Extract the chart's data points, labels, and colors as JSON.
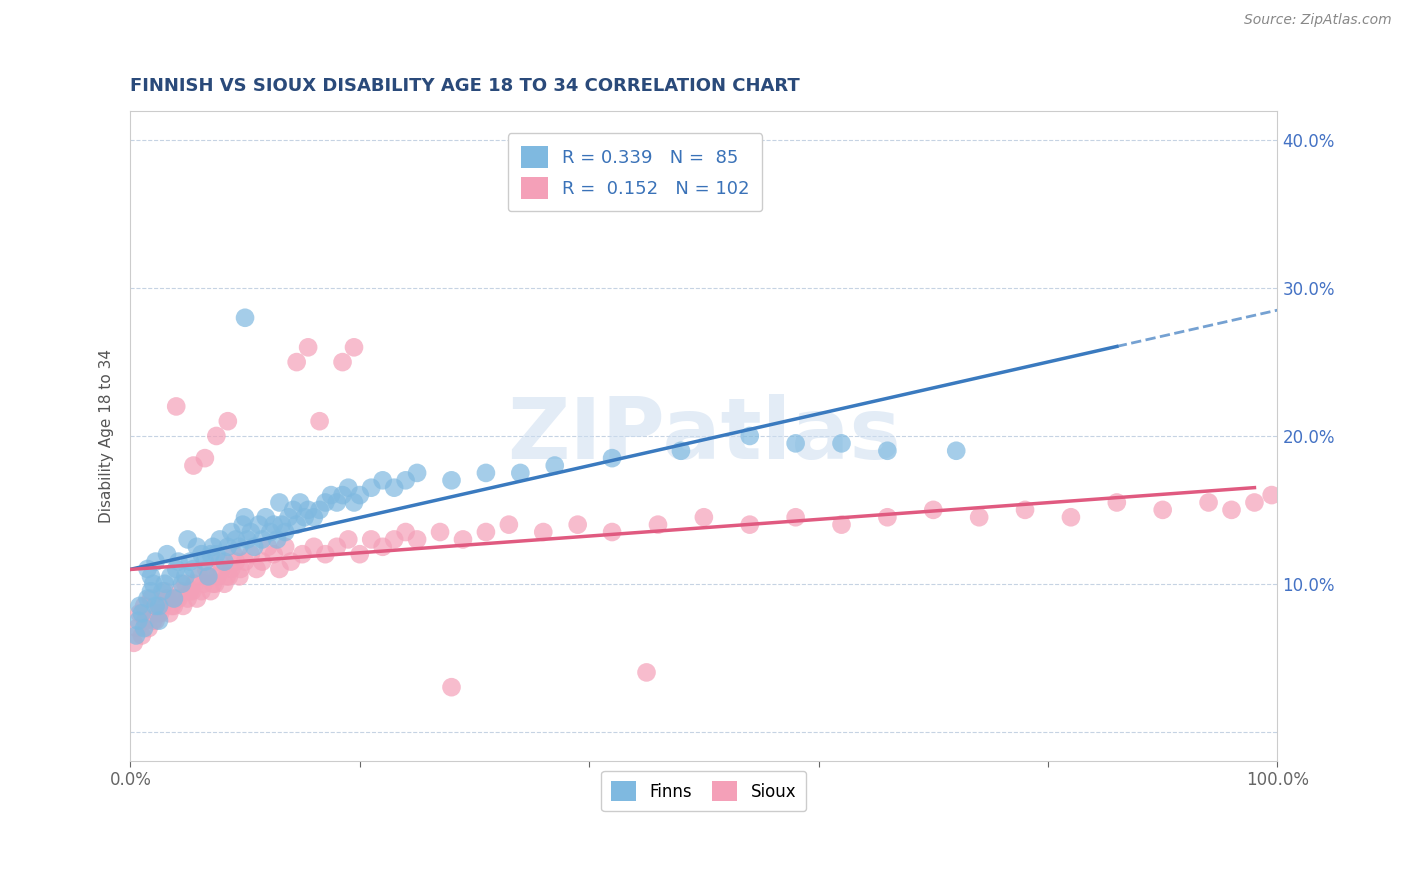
{
  "title": "FINNISH VS SIOUX DISABILITY AGE 18 TO 34 CORRELATION CHART",
  "source": "Source: ZipAtlas.com",
  "ylabel": "Disability Age 18 to 34",
  "xlim": [
    0.0,
    1.0
  ],
  "ylim": [
    -0.02,
    0.42
  ],
  "xticks": [
    0.0,
    0.2,
    0.4,
    0.6,
    0.8,
    1.0
  ],
  "xticklabels": [
    "0.0%",
    "",
    "",
    "",
    "",
    "100.0%"
  ],
  "yticks": [
    0.0,
    0.1,
    0.2,
    0.3,
    0.4
  ],
  "yticklabels": [
    "",
    "10.0%",
    "20.0%",
    "30.0%",
    "40.0%"
  ],
  "finns_R": 0.339,
  "finns_N": 85,
  "sioux_R": 0.152,
  "sioux_N": 102,
  "finns_color": "#7fb9e0",
  "sioux_color": "#f4a0b8",
  "finns_line_color": "#3a7abf",
  "sioux_line_color": "#e05a80",
  "finns_line_dash": "solid",
  "sioux_line_dash": "solid",
  "background_color": "#ffffff",
  "grid_color": "#c0cfe0",
  "title_color": "#2a4a7a",
  "watermark": "ZIPatlas",
  "legend_label_finns": "Finns",
  "legend_label_sioux": "Sioux",
  "finns_x": [
    0.005,
    0.007,
    0.01,
    0.012,
    0.015,
    0.008,
    0.018,
    0.02,
    0.022,
    0.025,
    0.015,
    0.018,
    0.022,
    0.028,
    0.03,
    0.035,
    0.038,
    0.04,
    0.032,
    0.025,
    0.042,
    0.045,
    0.048,
    0.052,
    0.055,
    0.058,
    0.062,
    0.065,
    0.068,
    0.05,
    0.072,
    0.075,
    0.078,
    0.082,
    0.085,
    0.088,
    0.092,
    0.095,
    0.098,
    0.07,
    0.102,
    0.105,
    0.108,
    0.112,
    0.115,
    0.118,
    0.122,
    0.125,
    0.128,
    0.1,
    0.132,
    0.135,
    0.138,
    0.142,
    0.145,
    0.148,
    0.152,
    0.155,
    0.13,
    0.16,
    0.165,
    0.17,
    0.175,
    0.18,
    0.185,
    0.19,
    0.195,
    0.2,
    0.21,
    0.22,
    0.23,
    0.24,
    0.25,
    0.28,
    0.31,
    0.34,
    0.37,
    0.42,
    0.48,
    0.54,
    0.58,
    0.62,
    0.66,
    0.72,
    0.1
  ],
  "finns_y": [
    0.065,
    0.075,
    0.08,
    0.07,
    0.09,
    0.085,
    0.095,
    0.1,
    0.085,
    0.075,
    0.11,
    0.105,
    0.115,
    0.095,
    0.1,
    0.105,
    0.09,
    0.11,
    0.12,
    0.085,
    0.115,
    0.1,
    0.105,
    0.115,
    0.11,
    0.125,
    0.12,
    0.115,
    0.105,
    0.13,
    0.125,
    0.12,
    0.13,
    0.115,
    0.125,
    0.135,
    0.13,
    0.125,
    0.14,
    0.12,
    0.13,
    0.135,
    0.125,
    0.14,
    0.13,
    0.145,
    0.135,
    0.14,
    0.13,
    0.145,
    0.14,
    0.135,
    0.145,
    0.15,
    0.14,
    0.155,
    0.145,
    0.15,
    0.155,
    0.145,
    0.15,
    0.155,
    0.16,
    0.155,
    0.16,
    0.165,
    0.155,
    0.16,
    0.165,
    0.17,
    0.165,
    0.17,
    0.175,
    0.17,
    0.175,
    0.175,
    0.18,
    0.185,
    0.19,
    0.2,
    0.195,
    0.195,
    0.19,
    0.19,
    0.28
  ],
  "sioux_x": [
    0.003,
    0.006,
    0.01,
    0.013,
    0.008,
    0.016,
    0.02,
    0.012,
    0.024,
    0.018,
    0.028,
    0.022,
    0.032,
    0.026,
    0.036,
    0.03,
    0.04,
    0.034,
    0.044,
    0.038,
    0.048,
    0.042,
    0.052,
    0.046,
    0.056,
    0.05,
    0.06,
    0.054,
    0.064,
    0.058,
    0.068,
    0.062,
    0.072,
    0.066,
    0.076,
    0.07,
    0.08,
    0.074,
    0.084,
    0.078,
    0.088,
    0.082,
    0.092,
    0.086,
    0.096,
    0.09,
    0.1,
    0.095,
    0.105,
    0.11,
    0.115,
    0.12,
    0.125,
    0.13,
    0.135,
    0.14,
    0.15,
    0.16,
    0.17,
    0.18,
    0.19,
    0.2,
    0.21,
    0.22,
    0.23,
    0.24,
    0.25,
    0.27,
    0.29,
    0.31,
    0.33,
    0.36,
    0.39,
    0.42,
    0.46,
    0.5,
    0.54,
    0.58,
    0.62,
    0.66,
    0.7,
    0.74,
    0.78,
    0.82,
    0.86,
    0.9,
    0.94,
    0.96,
    0.98,
    0.995,
    0.055,
    0.065,
    0.075,
    0.085,
    0.04,
    0.145,
    0.155,
    0.165,
    0.185,
    0.195,
    0.28,
    0.45
  ],
  "sioux_y": [
    0.06,
    0.07,
    0.065,
    0.075,
    0.08,
    0.07,
    0.075,
    0.085,
    0.08,
    0.09,
    0.085,
    0.075,
    0.09,
    0.08,
    0.085,
    0.095,
    0.09,
    0.08,
    0.095,
    0.085,
    0.1,
    0.09,
    0.095,
    0.085,
    0.1,
    0.09,
    0.105,
    0.095,
    0.1,
    0.09,
    0.105,
    0.095,
    0.1,
    0.11,
    0.105,
    0.095,
    0.11,
    0.1,
    0.105,
    0.115,
    0.11,
    0.1,
    0.115,
    0.105,
    0.11,
    0.12,
    0.115,
    0.105,
    0.12,
    0.11,
    0.115,
    0.125,
    0.12,
    0.11,
    0.125,
    0.115,
    0.12,
    0.125,
    0.12,
    0.125,
    0.13,
    0.12,
    0.13,
    0.125,
    0.13,
    0.135,
    0.13,
    0.135,
    0.13,
    0.135,
    0.14,
    0.135,
    0.14,
    0.135,
    0.14,
    0.145,
    0.14,
    0.145,
    0.14,
    0.145,
    0.15,
    0.145,
    0.15,
    0.145,
    0.155,
    0.15,
    0.155,
    0.15,
    0.155,
    0.16,
    0.18,
    0.185,
    0.2,
    0.21,
    0.22,
    0.25,
    0.26,
    0.21,
    0.25,
    0.26,
    0.03,
    0.04
  ]
}
